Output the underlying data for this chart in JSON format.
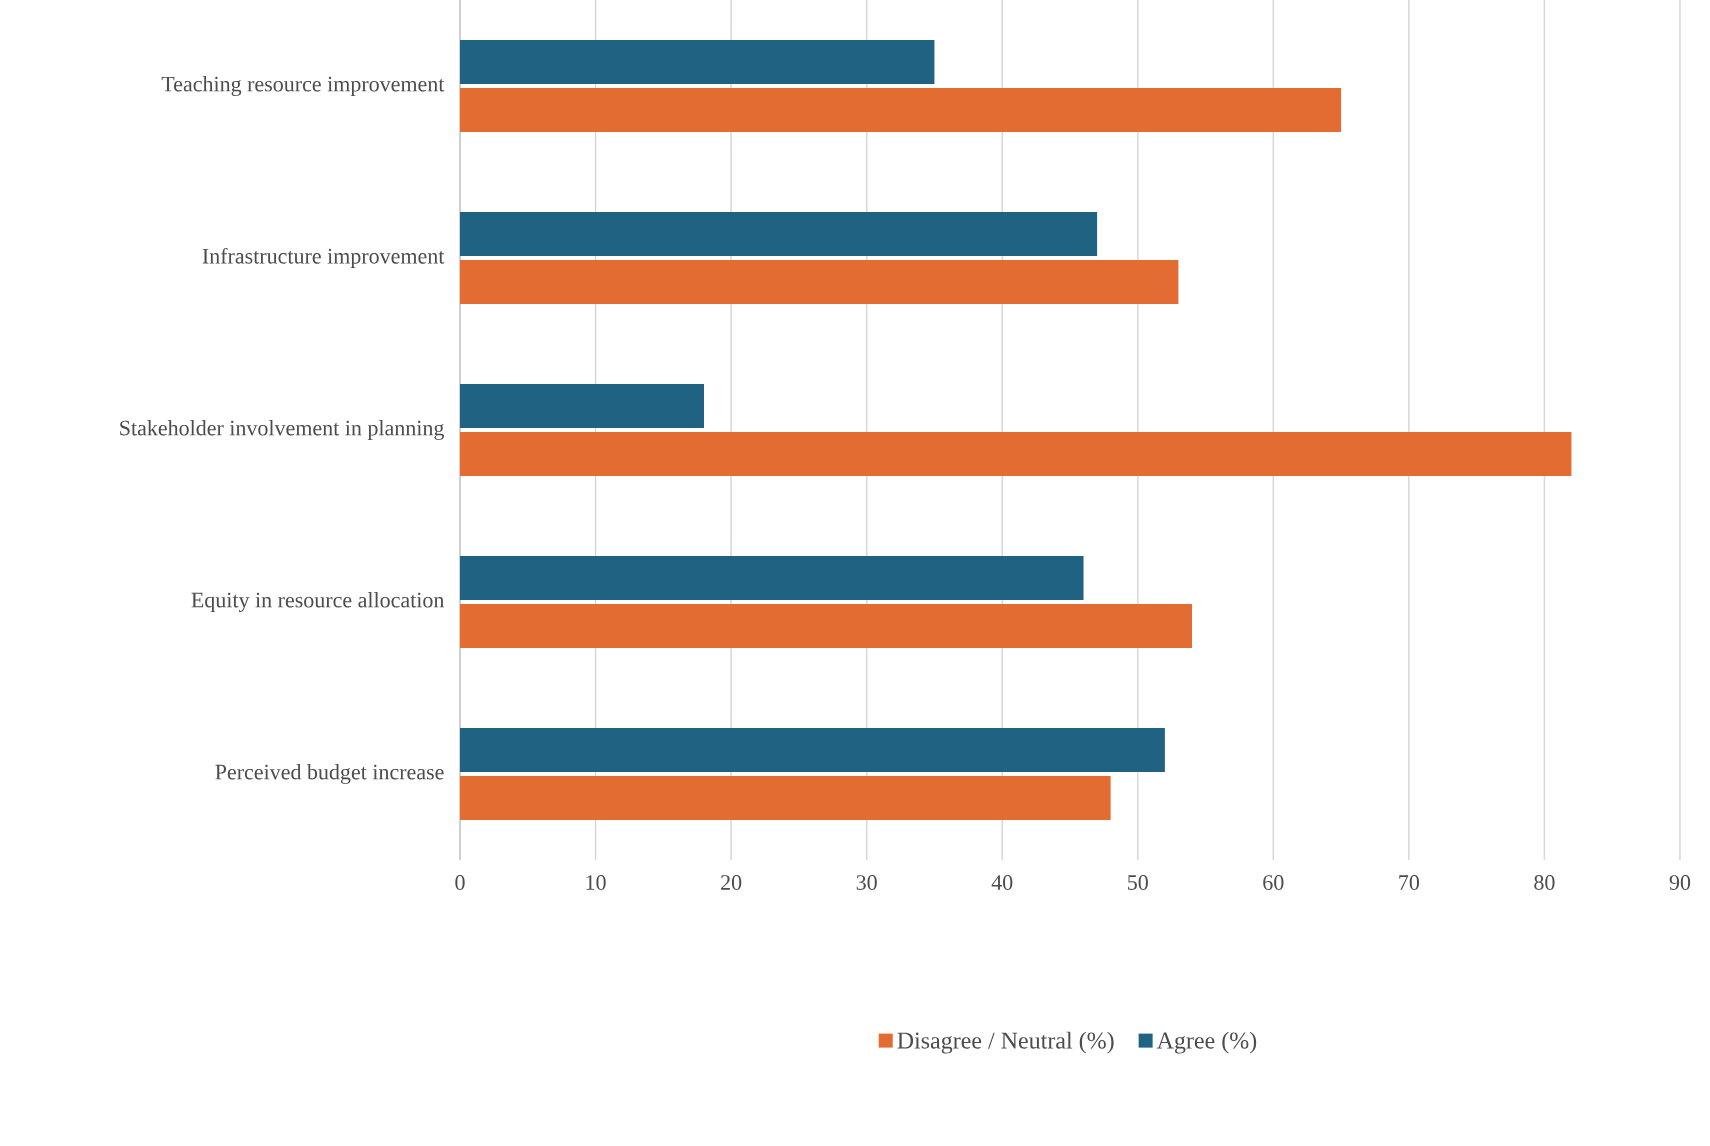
{
  "chart_data": {
    "type": "bar",
    "orientation": "horizontal",
    "categories": [
      "Teaching resource improvement",
      "Infrastructure improvement",
      "Stakeholder involvement in planning",
      "Equity in resource allocation",
      "Perceived budget increase"
    ],
    "series": [
      {
        "name": "Disagree / Neutral (%)",
        "color": "#e36c33",
        "values": [
          65,
          53,
          82,
          54,
          48
        ]
      },
      {
        "name": "Agree (%)",
        "color": "#206282",
        "values": [
          35,
          47,
          18,
          46,
          52
        ]
      }
    ],
    "xlim": [
      0,
      90
    ],
    "xticks": [
      0,
      10,
      20,
      30,
      40,
      50,
      60,
      70,
      80,
      90
    ],
    "grid": "x",
    "legend": "bottom"
  }
}
